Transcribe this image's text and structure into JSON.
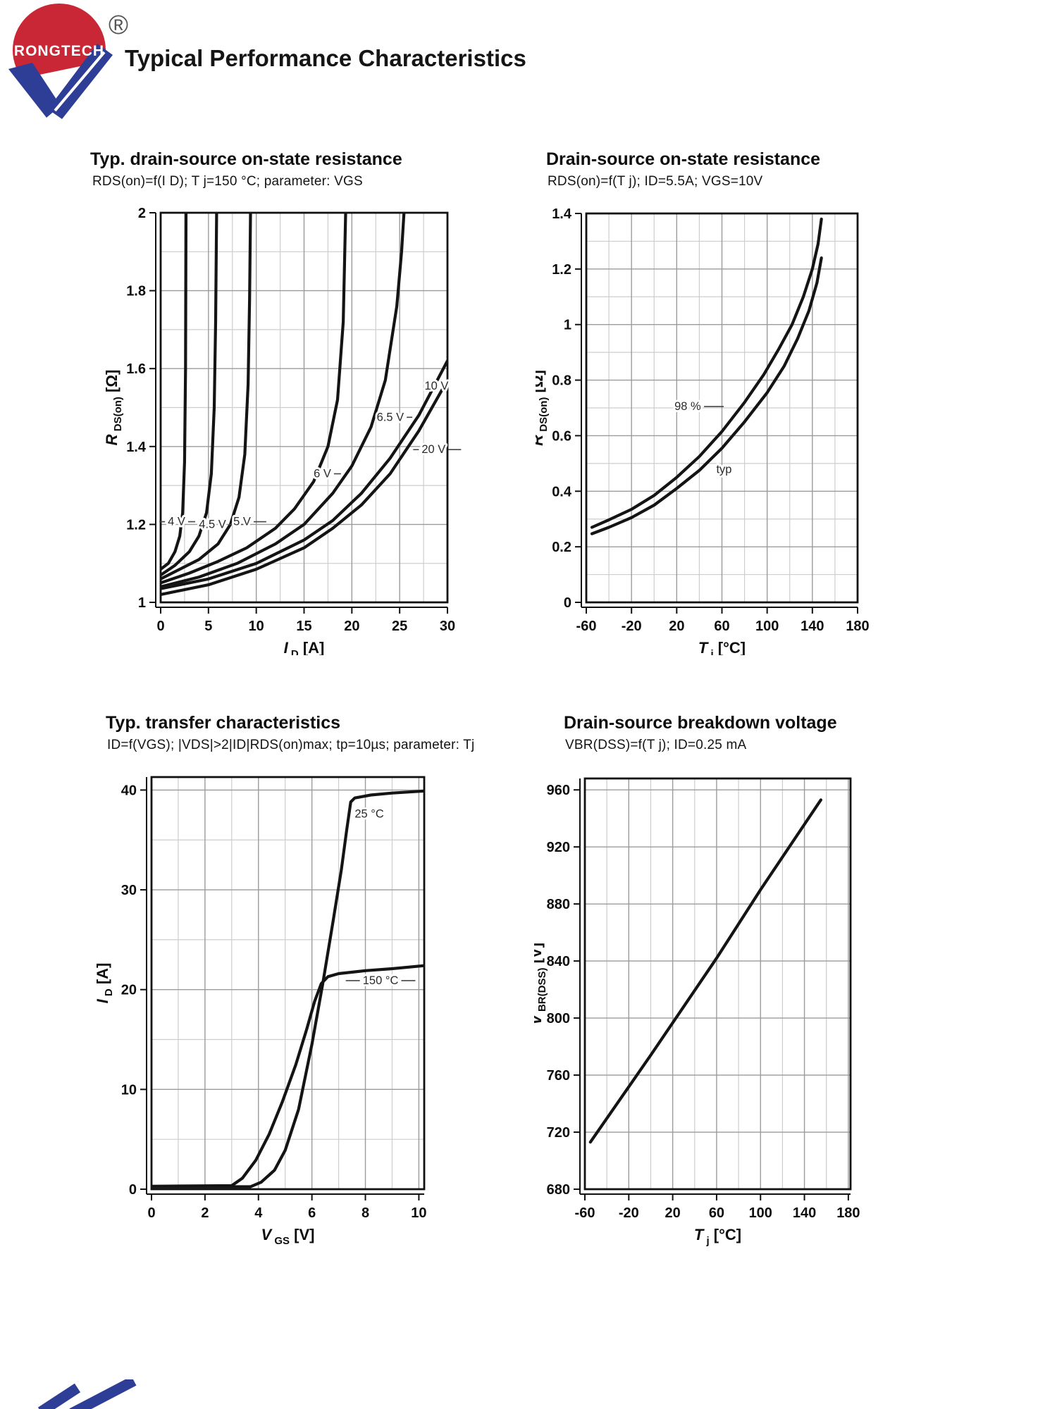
{
  "page": {
    "title": "Typical Performance Characteristics",
    "logo": {
      "brand": "RONGTECH",
      "registered": "®"
    }
  },
  "colors": {
    "curve": "#141414",
    "grid_major": "#9b9b9b",
    "grid_minor": "#cdcdcd",
    "axis": "#111111",
    "logo_red": "#c92735",
    "logo_blue": "#2e3d96"
  },
  "chart_data": [
    {
      "id": "rdson-vs-id",
      "type": "line",
      "title": "Typ. drain-source on-state resistance",
      "subtitle": "RDS(on)=f(I D); T j=150 °C; parameter: VGS",
      "xlabel": [
        "I",
        "D",
        "[A]"
      ],
      "ylabel": [
        "R",
        "DS(on)",
        "[Ω]"
      ],
      "xlim": [
        0,
        30
      ],
      "ylim": [
        1,
        2
      ],
      "x_minor": 2.5,
      "y_minor": 0.1,
      "grid": "on",
      "legend_position": "inline-labels",
      "xticks": [
        [
          0,
          "0"
        ],
        [
          5,
          "5"
        ],
        [
          10,
          "10"
        ],
        [
          15,
          "15"
        ],
        [
          20,
          "20"
        ],
        [
          25,
          "25"
        ],
        [
          30,
          "30"
        ]
      ],
      "yticks": [
        [
          2,
          "2"
        ],
        [
          1.8,
          "1.8"
        ],
        [
          1.6,
          "1.6"
        ],
        [
          1.4,
          "1.4"
        ],
        [
          1.2,
          "1.2"
        ],
        [
          1,
          "1"
        ]
      ],
      "series": [
        {
          "name": "20 V",
          "points": [
            [
              0,
              1.02
            ],
            [
              5,
              1.045
            ],
            [
              10,
              1.085
            ],
            [
              15,
              1.14
            ],
            [
              18,
              1.19
            ],
            [
              21,
              1.25
            ],
            [
              24,
              1.33
            ],
            [
              27,
              1.44
            ],
            [
              30,
              1.57
            ]
          ]
        },
        {
          "name": "10 V",
          "points": [
            [
              0,
              1.035
            ],
            [
              5,
              1.06
            ],
            [
              10,
              1.1
            ],
            [
              15,
              1.16
            ],
            [
              18,
              1.21
            ],
            [
              21,
              1.28
            ],
            [
              24,
              1.37
            ],
            [
              27,
              1.48
            ],
            [
              30,
              1.62
            ]
          ]
        },
        {
          "name": "6.5 V",
          "points": [
            [
              0,
              1.04
            ],
            [
              4,
              1.065
            ],
            [
              8,
              1.1
            ],
            [
              12,
              1.15
            ],
            [
              15,
              1.2
            ],
            [
              18,
              1.28
            ],
            [
              20,
              1.35
            ],
            [
              22,
              1.45
            ],
            [
              23.5,
              1.57
            ],
            [
              24.7,
              1.76
            ],
            [
              25.2,
              1.9
            ],
            [
              25.45,
              2.0
            ]
          ]
        },
        {
          "name": "6 V",
          "points": [
            [
              0,
              1.05
            ],
            [
              3,
              1.075
            ],
            [
              6,
              1.105
            ],
            [
              9,
              1.14
            ],
            [
              12,
              1.19
            ],
            [
              14,
              1.24
            ],
            [
              16,
              1.31
            ],
            [
              17.5,
              1.4
            ],
            [
              18.5,
              1.52
            ],
            [
              19.1,
              1.72
            ],
            [
              19.35,
              2.0
            ]
          ]
        },
        {
          "name": "5 V",
          "points": [
            [
              0,
              1.06
            ],
            [
              2,
              1.085
            ],
            [
              4,
              1.11
            ],
            [
              6,
              1.15
            ],
            [
              7.3,
              1.2
            ],
            [
              8.2,
              1.27
            ],
            [
              8.8,
              1.38
            ],
            [
              9.15,
              1.56
            ],
            [
              9.3,
              1.78
            ],
            [
              9.4,
              2.0
            ]
          ]
        },
        {
          "name": "4.5 V",
          "points": [
            [
              0,
              1.07
            ],
            [
              1.5,
              1.095
            ],
            [
              3,
              1.13
            ],
            [
              4,
              1.17
            ],
            [
              4.8,
              1.23
            ],
            [
              5.3,
              1.33
            ],
            [
              5.6,
              1.5
            ],
            [
              5.75,
              1.72
            ],
            [
              5.85,
              2.0
            ]
          ]
        },
        {
          "name": "4 V",
          "points": [
            [
              0,
              1.085
            ],
            [
              0.8,
              1.1
            ],
            [
              1.5,
              1.13
            ],
            [
              2.0,
              1.17
            ],
            [
              2.3,
              1.23
            ],
            [
              2.5,
              1.36
            ],
            [
              2.6,
              1.6
            ],
            [
              2.65,
              2.0
            ]
          ]
        }
      ],
      "labels": [
        {
          "text": "4 V",
          "x": 0.75,
          "y": 1.207,
          "dl": 8,
          "dr": 10
        },
        {
          "text": "4.5 V",
          "x": 4.0,
          "y": 1.2,
          "dr": 20
        },
        {
          "text": "5 V",
          "x": 7.6,
          "y": 1.207,
          "dr": 18
        },
        {
          "text": "6 V",
          "x": 16.0,
          "y": 1.33,
          "dr": 10
        },
        {
          "text": "6.5 V",
          "x": 22.6,
          "y": 1.475,
          "dr": 8
        },
        {
          "text": "10 V",
          "x": 27.6,
          "y": 1.555
        },
        {
          "text": "20 V",
          "x": 27.3,
          "y": 1.392,
          "dl": 8,
          "dr": 18
        }
      ]
    },
    {
      "id": "rdson-vs-tj",
      "type": "line",
      "title": "Drain-source on-state resistance",
      "subtitle": "RDS(on)=f(T j); ID=5.5A; VGS=10V",
      "xlabel": [
        "T",
        "j",
        "[°C]"
      ],
      "ylabel": [
        "R",
        "DS(on)",
        "[Ω]"
      ],
      "xlim": [
        -60,
        180
      ],
      "ylim": [
        0,
        1.4
      ],
      "x_minor": 20,
      "y_minor": 0.1,
      "grid": "on",
      "legend_position": "inline-labels",
      "xticks": [
        [
          -60,
          "-60"
        ],
        [
          -20,
          "-20"
        ],
        [
          20,
          "20"
        ],
        [
          60,
          "60"
        ],
        [
          100,
          "100"
        ],
        [
          140,
          "140"
        ],
        [
          180,
          "180"
        ]
      ],
      "yticks": [
        [
          1.4,
          "1.4"
        ],
        [
          1.2,
          "1.2"
        ],
        [
          1,
          "1"
        ],
        [
          0.8,
          "0.8"
        ],
        [
          0.6,
          "0.6"
        ],
        [
          0.4,
          "0.4"
        ],
        [
          0.2,
          "0.2"
        ],
        [
          0,
          "0"
        ]
      ],
      "series": [
        {
          "name": "98 %",
          "points": [
            [
              -55,
              0.27
            ],
            [
              -40,
              0.297
            ],
            [
              -20,
              0.335
            ],
            [
              0,
              0.385
            ],
            [
              20,
              0.45
            ],
            [
              40,
              0.525
            ],
            [
              60,
              0.615
            ],
            [
              80,
              0.72
            ],
            [
              97,
              0.82
            ],
            [
              110,
              0.91
            ],
            [
              122,
              1.0
            ],
            [
              132,
              1.1
            ],
            [
              140,
              1.2
            ],
            [
              145,
              1.29
            ],
            [
              148,
              1.38
            ]
          ]
        },
        {
          "name": "typ",
          "points": [
            [
              -55,
              0.247
            ],
            [
              -40,
              0.27
            ],
            [
              -20,
              0.305
            ],
            [
              0,
              0.35
            ],
            [
              20,
              0.41
            ],
            [
              40,
              0.475
            ],
            [
              60,
              0.555
            ],
            [
              80,
              0.65
            ],
            [
              100,
              0.755
            ],
            [
              115,
              0.85
            ],
            [
              127,
              0.95
            ],
            [
              137,
              1.05
            ],
            [
              144,
              1.15
            ],
            [
              148,
              1.24
            ]
          ]
        }
      ],
      "labels": [
        {
          "text": "98 %",
          "x": 18,
          "y": 0.705,
          "dr": 28
        },
        {
          "text": "typ",
          "x": 55,
          "y": 0.478
        }
      ]
    },
    {
      "id": "transfer-characteristics",
      "type": "line",
      "title": "Typ. transfer characteristics",
      "subtitle": "ID=f(VGS); |VDS|>2|ID|RDS(on)max; tp=10µs; parameter: Tj",
      "xlabel": [
        "V",
        "GS",
        "[V]"
      ],
      "ylabel": [
        "I",
        "D",
        "[A]"
      ],
      "xlim": [
        0,
        10.2
      ],
      "ylim": [
        0,
        41.3
      ],
      "x_minor": 1,
      "y_minor": 5,
      "grid": "on",
      "legend_position": "inline-labels",
      "xticks": [
        [
          0,
          "0"
        ],
        [
          2,
          "2"
        ],
        [
          4,
          "4"
        ],
        [
          6,
          "6"
        ],
        [
          8,
          "8"
        ],
        [
          10,
          "10"
        ]
      ],
      "yticks": [
        [
          0,
          "0"
        ],
        [
          10,
          "10"
        ],
        [
          20,
          "20"
        ],
        [
          30,
          "30"
        ],
        [
          40,
          "40"
        ]
      ],
      "series": [
        {
          "name": "25 °C",
          "points": [
            [
              0,
              0.25
            ],
            [
              3.7,
              0.25
            ],
            [
              4.1,
              0.7
            ],
            [
              4.6,
              1.9
            ],
            [
              5.0,
              3.9
            ],
            [
              5.5,
              8
            ],
            [
              6.0,
              14.5
            ],
            [
              6.4,
              20.5
            ],
            [
              6.8,
              27
            ],
            [
              7.1,
              32
            ],
            [
              7.3,
              36
            ],
            [
              7.45,
              38.8
            ],
            [
              7.6,
              39.2
            ],
            [
              8.2,
              39.5
            ],
            [
              9,
              39.7
            ],
            [
              10.2,
              39.9
            ]
          ]
        },
        {
          "name": "150 °C",
          "points": [
            [
              0,
              0.3
            ],
            [
              3.0,
              0.35
            ],
            [
              3.4,
              1.1
            ],
            [
              3.9,
              2.9
            ],
            [
              4.4,
              5.5
            ],
            [
              4.9,
              8.8
            ],
            [
              5.4,
              12.5
            ],
            [
              5.8,
              16
            ],
            [
              6.1,
              18.8
            ],
            [
              6.35,
              20.6
            ],
            [
              6.6,
              21.3
            ],
            [
              7,
              21.6
            ],
            [
              8,
              21.9
            ],
            [
              9,
              22.1
            ],
            [
              10.2,
              22.4
            ]
          ]
        }
      ],
      "labels": [
        {
          "text": "25 °C",
          "x": 7.6,
          "y": 37.6
        },
        {
          "text": "150 °C",
          "x": 7.9,
          "y": 20.9,
          "dl": 20,
          "dr": 20
        }
      ]
    },
    {
      "id": "breakdown-voltage-vs-tj",
      "type": "line",
      "title": "Drain-source breakdown voltage",
      "subtitle": "VBR(DSS)=f(T j); ID=0.25 mA",
      "xlabel": [
        "T",
        "j",
        "[°C]"
      ],
      "ylabel": [
        "V",
        "BR(DSS)",
        "[V]"
      ],
      "xlim": [
        -60,
        182
      ],
      "ylim": [
        680,
        968
      ],
      "x_minor": 20,
      "y_minor": null,
      "grid": "on",
      "legend_position": "none",
      "xticks": [
        [
          -60,
          "-60"
        ],
        [
          -20,
          "-20"
        ],
        [
          20,
          "20"
        ],
        [
          60,
          "60"
        ],
        [
          100,
          "100"
        ],
        [
          140,
          "140"
        ],
        [
          180,
          "180"
        ]
      ],
      "yticks": [
        [
          960,
          "960"
        ],
        [
          920,
          "920"
        ],
        [
          880,
          "880"
        ],
        [
          840,
          "840"
        ],
        [
          800,
          "800"
        ],
        [
          760,
          "760"
        ],
        [
          720,
          "720"
        ],
        [
          680,
          "680"
        ]
      ],
      "series": [
        {
          "name": "VBR(DSS)",
          "points": [
            [
              -55,
              713
            ],
            [
              0,
              774
            ],
            [
              60,
              842
            ],
            [
              100,
              890
            ],
            [
              155,
              953
            ]
          ]
        }
      ],
      "labels": []
    }
  ]
}
